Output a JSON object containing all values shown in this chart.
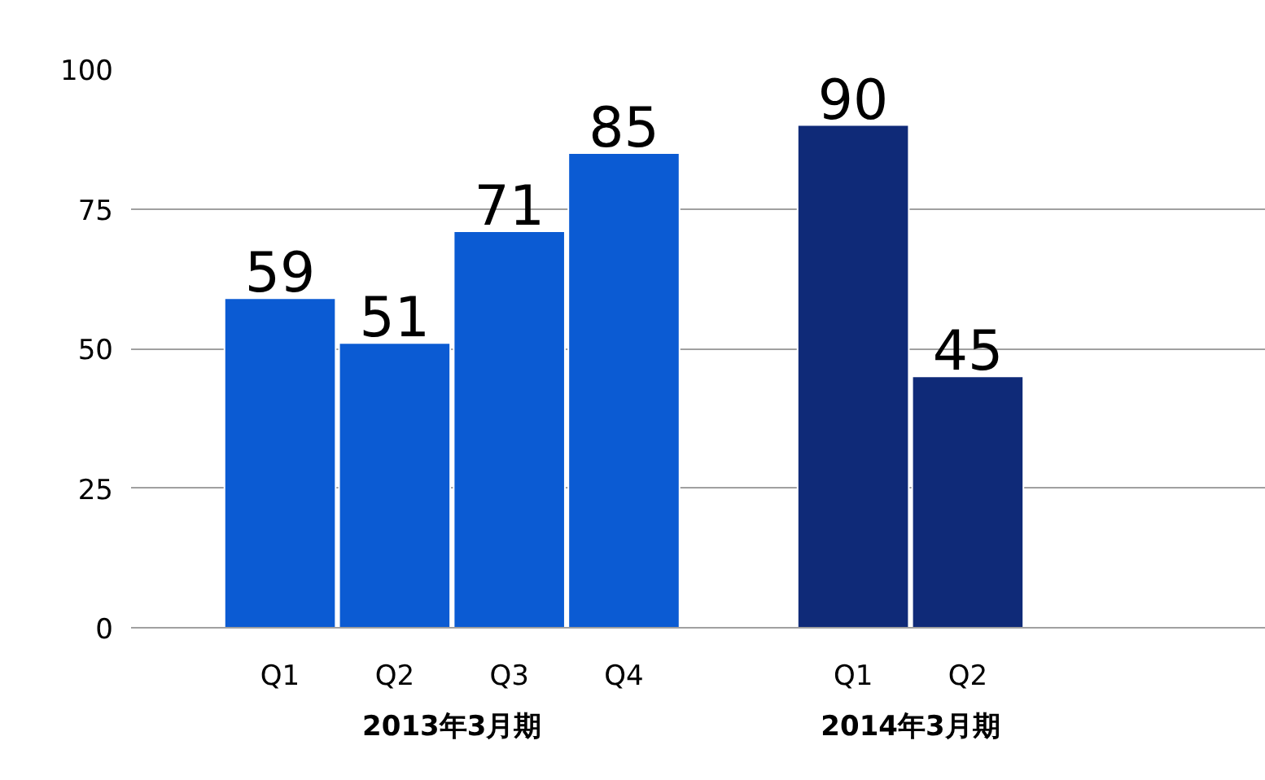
{
  "chart_data": {
    "type": "bar",
    "categories": [
      "Q1",
      "Q2",
      "Q3",
      "Q4",
      null,
      "Q1",
      "Q2"
    ],
    "values": [
      59,
      51,
      71,
      85,
      null,
      90,
      45
    ],
    "colors": [
      "#0b5bd3",
      "#0b5bd3",
      "#0b5bd3",
      "#0b5bd3",
      "#0b5bd3",
      "#0f2a78",
      "#0f2a78"
    ],
    "ylim": [
      0,
      100
    ],
    "yticks": [
      0,
      25,
      50,
      75,
      100
    ],
    "grid": "y",
    "data_labels": true,
    "annotations": [
      "2013年3月期",
      "2014年3月期"
    ]
  }
}
